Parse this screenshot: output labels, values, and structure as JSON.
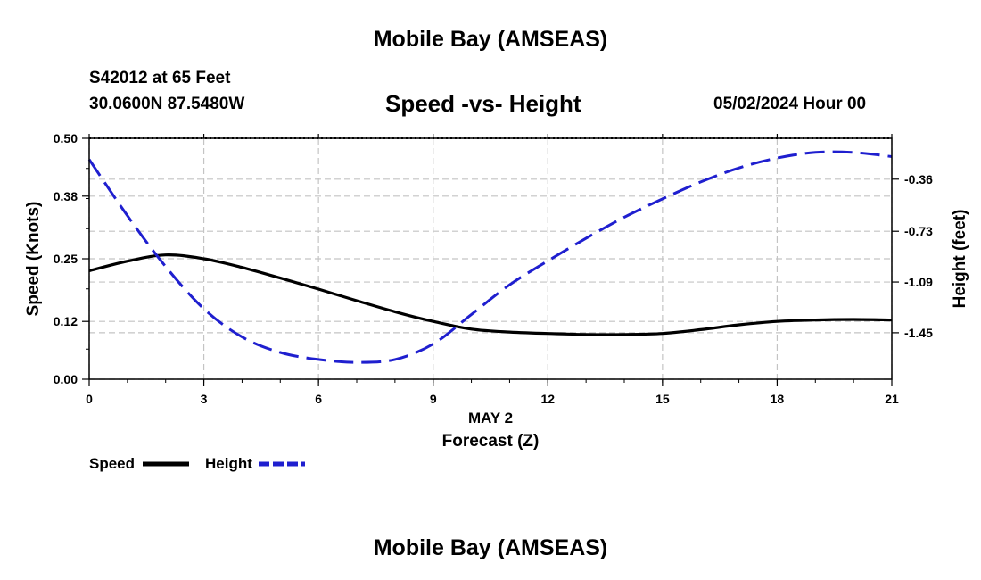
{
  "header": {
    "title": "Mobile Bay (AMSEAS)",
    "station": "S42012 at 65 Feet",
    "coords": "30.0600N  87.5480W",
    "subtitle": "Speed -vs- Height",
    "datetime": "05/02/2024 Hour 00"
  },
  "footer": {
    "title": "Mobile Bay (AMSEAS)"
  },
  "chart_data": {
    "type": "line",
    "title": "Speed -vs- Height",
    "xlabel_date": "MAY 2",
    "xlabel": "Forecast (Z)",
    "ylabel_left": "Speed (Knots)",
    "ylabel_right": "Height (feet)",
    "x_ticks": [
      "0",
      "3",
      "6",
      "9",
      "12",
      "15",
      "18",
      "21"
    ],
    "y_left_ticks": [
      "0.00",
      "0.12",
      "0.25",
      "0.38",
      "0.50"
    ],
    "y_right_ticks": [
      "-0.36",
      "-0.73",
      "-1.09",
      "-1.45"
    ],
    "x_range": [
      0,
      21
    ],
    "y_left_range": [
      0,
      0.5
    ],
    "y_right_range": [
      -1.78,
      -0.07
    ],
    "grid": true,
    "series": [
      {
        "name": "Speed",
        "axis": "left",
        "color": "#000000",
        "style": "solid",
        "x": [
          0,
          1,
          2,
          3,
          4,
          5,
          6,
          7,
          8,
          9,
          10,
          11,
          12,
          13,
          14,
          15,
          16,
          17,
          18,
          19,
          20,
          21
        ],
        "values": [
          0.225,
          0.245,
          0.258,
          0.25,
          0.232,
          0.21,
          0.187,
          0.163,
          0.14,
          0.12,
          0.104,
          0.098,
          0.095,
          0.093,
          0.093,
          0.095,
          0.103,
          0.113,
          0.12,
          0.123,
          0.124,
          0.123
        ]
      },
      {
        "name": "Height",
        "axis": "right",
        "color": "#1f1fcf",
        "style": "dashed",
        "x": [
          0,
          1,
          2,
          3,
          4,
          5,
          6,
          7,
          8,
          9,
          10,
          11,
          12,
          13,
          14,
          15,
          16,
          17,
          18,
          19,
          20,
          21
        ],
        "values": [
          -0.22,
          -0.62,
          -0.98,
          -1.28,
          -1.48,
          -1.59,
          -1.64,
          -1.66,
          -1.64,
          -1.53,
          -1.32,
          -1.11,
          -0.94,
          -0.78,
          -0.63,
          -0.5,
          -0.38,
          -0.28,
          -0.21,
          -0.17,
          -0.17,
          -0.2
        ]
      }
    ],
    "legend": {
      "position": "bottom-left",
      "entries": [
        "Speed",
        "Height"
      ]
    }
  }
}
